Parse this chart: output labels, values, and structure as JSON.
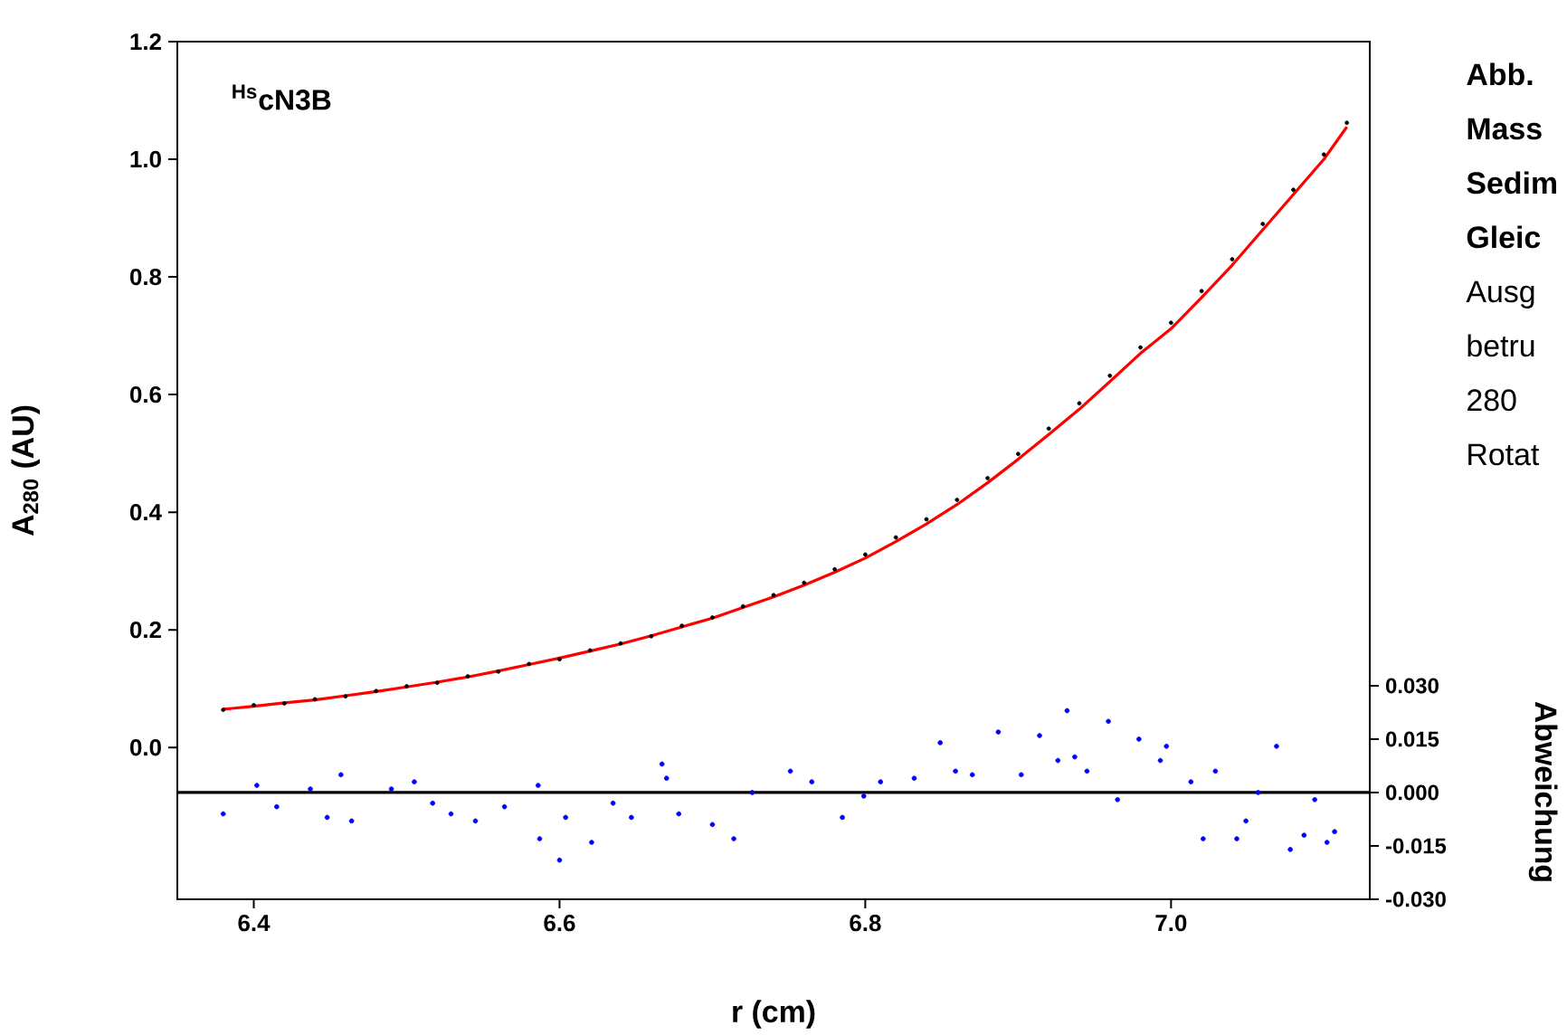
{
  "chart_data": {
    "type": "scatter",
    "xlabel": "r (cm)",
    "ylabel": "A$_{280}$ (AU)",
    "y2label": "Abweichung",
    "annotations": [
      "$^{Hs}$cN3B",
      "Abb.",
      "Mass",
      "Sedim",
      "Gleic",
      "Ausg",
      "betru",
      "280",
      "Rotat"
    ],
    "xlim": [
      6.35,
      7.13
    ],
    "ylim": [
      -0.258,
      1.2
    ],
    "y2lim": [
      -0.03,
      0.211
    ],
    "xticks": [
      6.4,
      6.6,
      6.8,
      {
        "value": 7.0,
        "label": "7.0"
      }
    ],
    "yticks": [
      {
        "value": 0,
        "label": "0.0"
      },
      0.2,
      0.4,
      0.6,
      0.8,
      {
        "value": 1.0,
        "label": "1.0"
      },
      {
        "value": 1.2,
        "label": "1.2"
      }
    ],
    "y2ticks": [
      {
        "value": -0.03,
        "label": "-0.030"
      },
      {
        "value": -0.015,
        "label": "-0.015"
      },
      {
        "value": 0,
        "label": "0.000"
      },
      {
        "value": 0.015,
        "label": "0.015"
      },
      {
        "value": 0.03,
        "label": "0.030"
      }
    ],
    "ref_lines": [
      {
        "axis": "y2",
        "value": 0,
        "color": "#000000"
      }
    ],
    "series": [
      {
        "marker": "circle",
        "color": "#000000",
        "x": [
          6.38,
          6.4,
          6.42,
          6.44,
          6.46,
          6.48,
          6.5,
          6.52,
          6.54,
          6.56,
          6.58,
          6.6,
          6.62,
          6.64,
          6.66,
          6.68,
          6.7,
          6.72,
          6.74,
          6.76,
          6.78,
          6.8,
          6.82,
          6.84,
          6.86,
          6.88,
          6.9,
          6.92,
          6.94,
          6.96,
          6.98,
          7.0,
          7.02,
          7.04,
          7.06,
          7.08,
          7.1,
          7.115
        ],
        "values": [
          0.064,
          0.072,
          0.075,
          0.082,
          0.087,
          0.096,
          0.104,
          0.11,
          0.121,
          0.129,
          0.142,
          0.15,
          0.165,
          0.177,
          0.189,
          0.207,
          0.221,
          0.24,
          0.259,
          0.28,
          0.303,
          0.328,
          0.357,
          0.388,
          0.421,
          0.458,
          0.499,
          0.542,
          0.585,
          0.632,
          0.68,
          0.722,
          0.776,
          0.83,
          0.89,
          0.948,
          1.008,
          1.062
        ]
      },
      {
        "type": "line",
        "marker": "none",
        "color": "#ff0000",
        "x": [
          6.38,
          6.4,
          6.42,
          6.44,
          6.46,
          6.48,
          6.5,
          6.52,
          6.54,
          6.56,
          6.58,
          6.6,
          6.62,
          6.64,
          6.66,
          6.68,
          6.7,
          6.72,
          6.74,
          6.76,
          6.78,
          6.8,
          6.82,
          6.84,
          6.86,
          6.88,
          6.9,
          6.92,
          6.94,
          6.96,
          6.98,
          7.0,
          7.02,
          7.04,
          7.06,
          7.08,
          7.1,
          7.115
        ],
        "values": [
          0.065,
          0.07,
          0.076,
          0.081,
          0.088,
          0.095,
          0.103,
          0.111,
          0.12,
          0.13,
          0.141,
          0.152,
          0.164,
          0.176,
          0.19,
          0.205,
          0.22,
          0.238,
          0.256,
          0.276,
          0.298,
          0.322,
          0.35,
          0.38,
          0.413,
          0.45,
          0.49,
          0.532,
          0.575,
          0.622,
          0.67,
          0.712,
          0.765,
          0.82,
          0.88,
          0.94,
          1.0,
          1.055
        ]
      },
      {
        "marker": "circle",
        "color": "#0000ff",
        "axis": "y2",
        "x": [
          6.38,
          6.402,
          6.415,
          6.437,
          6.448,
          6.457,
          6.464,
          6.49,
          6.505,
          6.517,
          6.529,
          6.545,
          6.564,
          6.586,
          6.587,
          6.6,
          6.604,
          6.621,
          6.635,
          6.647,
          6.667,
          6.67,
          6.678,
          6.7,
          6.714,
          6.726,
          6.751,
          6.765,
          6.785,
          6.799,
          6.81,
          6.832,
          6.849,
          6.859,
          6.87,
          6.887,
          6.902,
          6.914,
          6.926,
          6.932,
          6.937,
          6.945,
          6.959,
          6.965,
          6.979,
          6.993,
          6.997,
          7.013,
          7.021,
          7.029,
          7.043,
          7.049,
          7.057,
          7.069,
          7.078,
          7.087,
          7.094,
          7.102,
          7.107
        ],
        "values": [
          -0.006,
          0.002,
          -0.004,
          0.001,
          -0.007,
          0.005,
          -0.008,
          0.001,
          0.003,
          -0.003,
          -0.006,
          -0.008,
          -0.004,
          0.002,
          -0.013,
          -0.019,
          -0.007,
          -0.014,
          -0.003,
          -0.007,
          0.008,
          0.004,
          -0.006,
          -0.009,
          -0.013,
          0.0,
          0.006,
          0.003,
          -0.007,
          -0.001,
          0.003,
          0.004,
          0.014,
          0.006,
          0.005,
          0.017,
          0.005,
          0.016,
          0.009,
          0.023,
          0.01,
          0.006,
          0.02,
          -0.002,
          0.015,
          0.009,
          0.013,
          0.003,
          -0.013,
          0.006,
          -0.013,
          -0.008,
          0.0,
          0.013,
          -0.016,
          -0.012,
          -0.002,
          -0.014,
          -0.011
        ]
      }
    ]
  }
}
